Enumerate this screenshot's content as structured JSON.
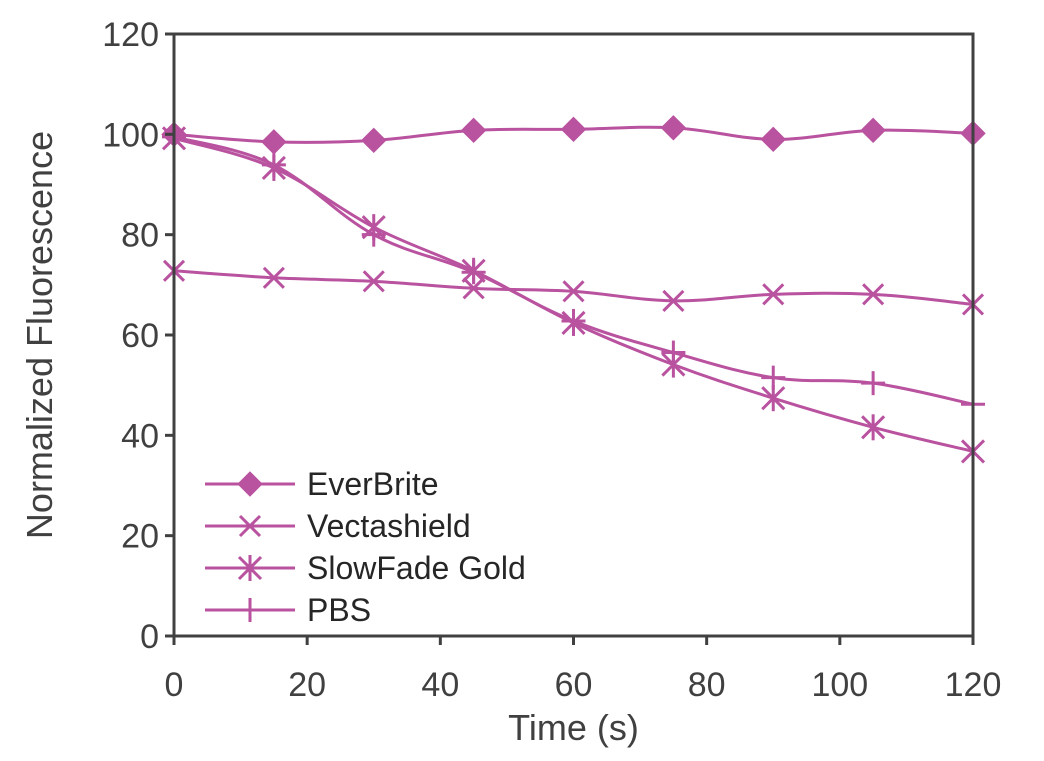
{
  "chart_data": {
    "type": "line",
    "title": "",
    "xlabel": "Time (s)",
    "ylabel": "Normalized Fluorescence",
    "xlim": [
      0,
      120
    ],
    "ylim": [
      0,
      120
    ],
    "xticks": [
      0,
      20,
      40,
      60,
      80,
      100,
      120
    ],
    "yticks": [
      0,
      20,
      40,
      60,
      80,
      100,
      120
    ],
    "xtick_labels": [
      "0",
      "20",
      "40",
      "60",
      "80",
      "100",
      "120"
    ],
    "ytick_labels": [
      "0",
      "20",
      "40",
      "60",
      "80",
      "100",
      "120"
    ],
    "grid": false,
    "legend_position": "bottom-left",
    "color": "#b9529f",
    "x": [
      0,
      15,
      30,
      45,
      60,
      75,
      90,
      105,
      120
    ],
    "series": [
      {
        "name": "EverBrite",
        "marker": "diamond",
        "values": [
          100,
          98.5,
          98.8,
          100.8,
          101,
          101.3,
          99,
          100.8,
          100.2
        ]
      },
      {
        "name": "Vectashield",
        "marker": "x",
        "values": [
          72.8,
          71.4,
          70.7,
          69.3,
          68.7,
          66.8,
          68.1,
          68.1,
          66.1
        ]
      },
      {
        "name": "SlowFade Gold",
        "marker": "star",
        "values": [
          99.2,
          93.3,
          81.5,
          72.8,
          62.4,
          54.1,
          47.4,
          41.6,
          36.8
        ]
      },
      {
        "name": "PBS",
        "marker": "plus",
        "values": [
          99.5,
          93.9,
          80.0,
          72.5,
          62.8,
          56.5,
          51.5,
          50.4,
          46.2
        ]
      }
    ]
  }
}
